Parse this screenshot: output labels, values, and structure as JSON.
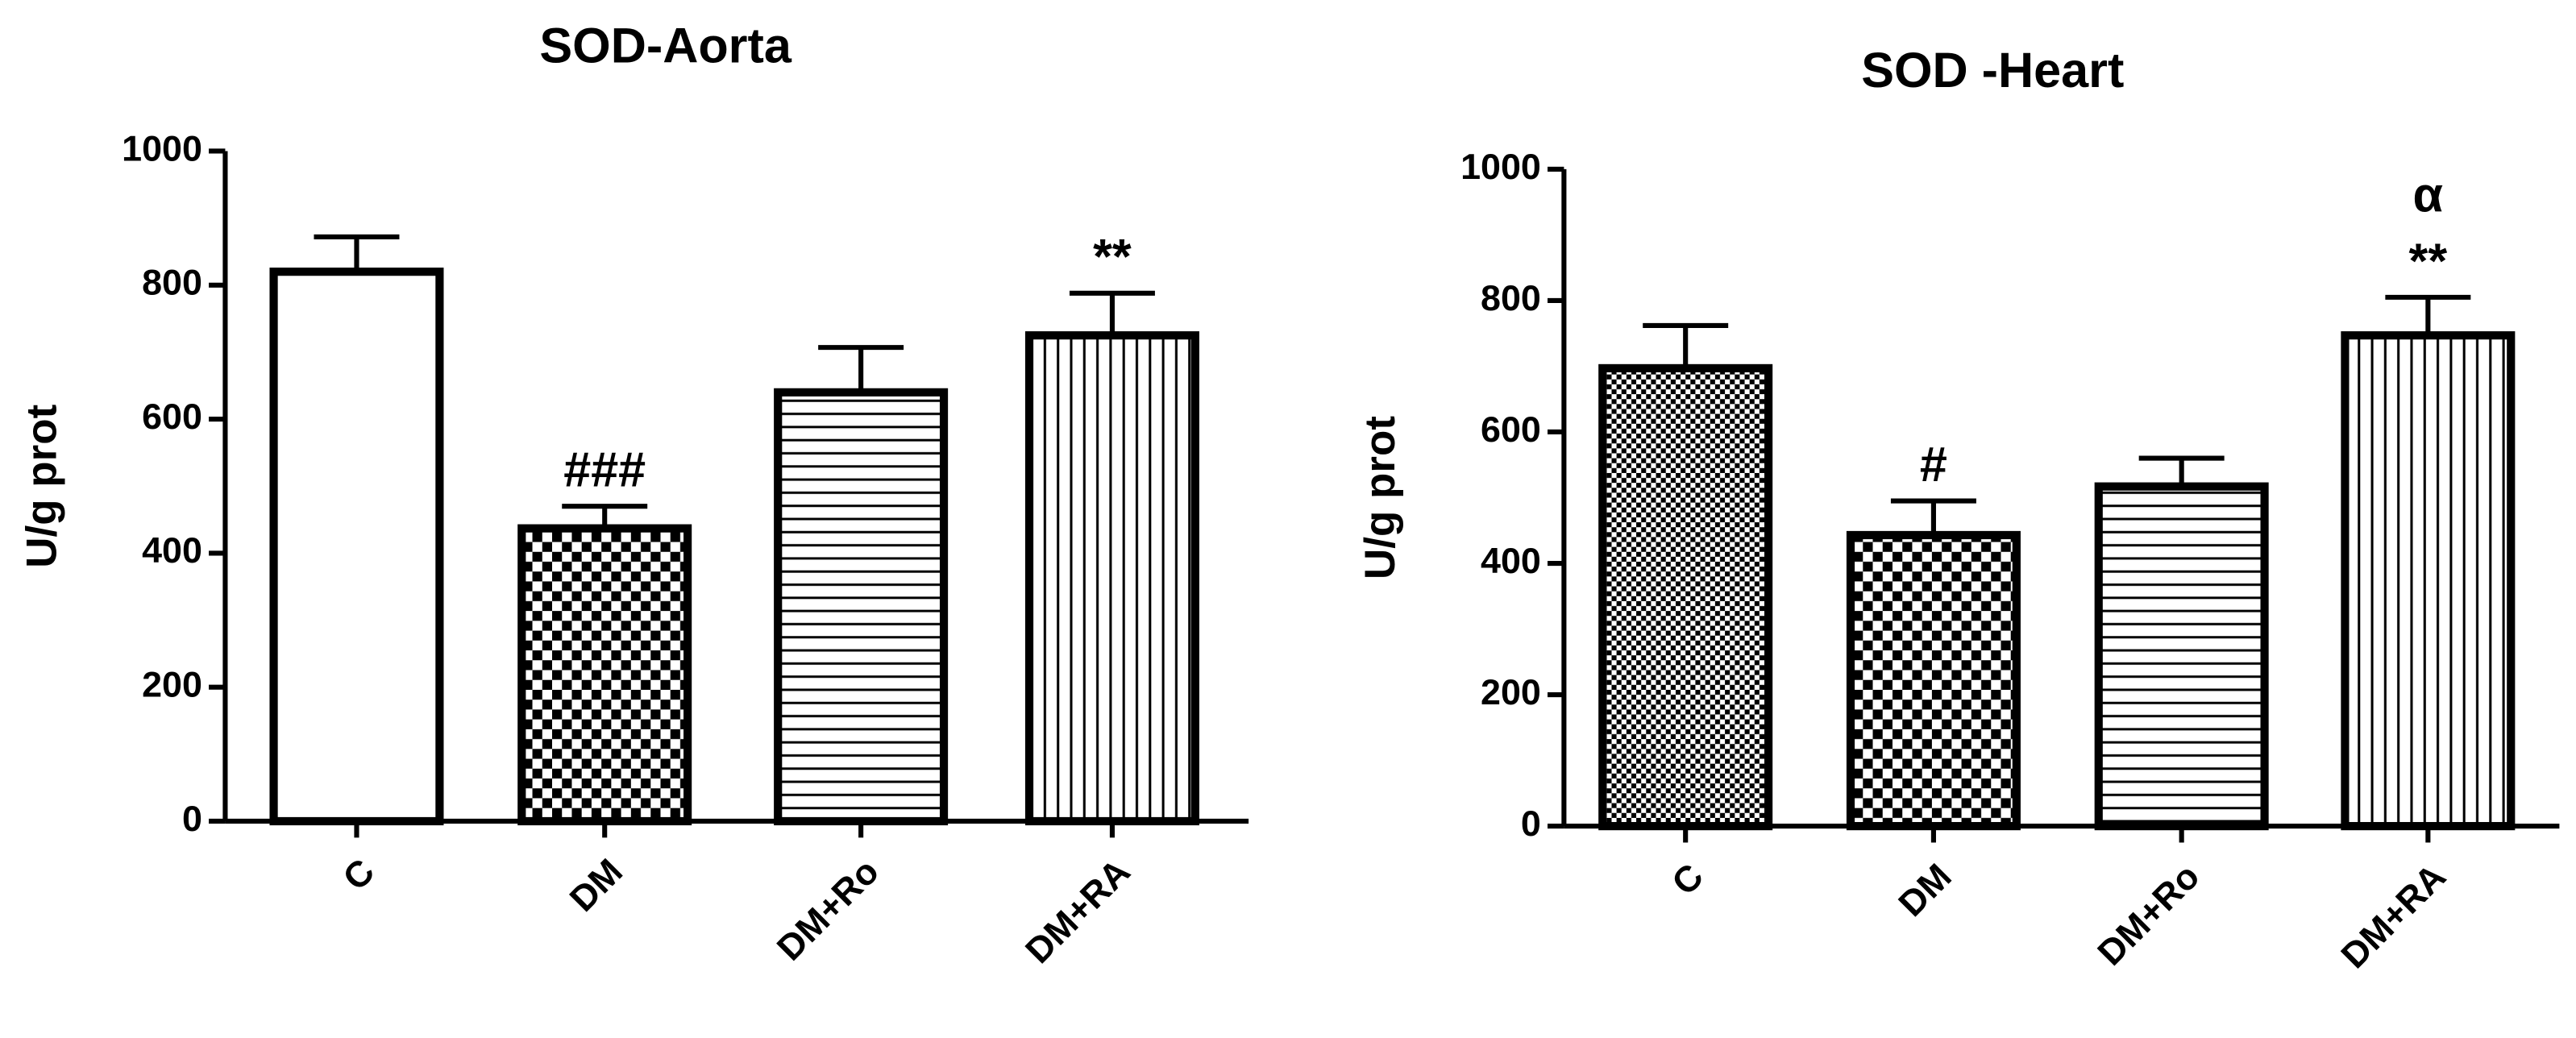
{
  "chart_data": [
    {
      "type": "bar",
      "title": "SOD-Aorta",
      "y_label": "U/g prot",
      "categories": [
        "C",
        "DM",
        "DM+Ro",
        "DM+RA"
      ],
      "values": [
        820,
        437,
        640,
        725
      ],
      "errors": [
        52,
        33,
        67,
        63
      ],
      "patterns": [
        "none",
        "checker",
        "hlines",
        "vlines"
      ],
      "color": "#000000",
      "ylim": [
        0,
        1000
      ],
      "yticks": [
        0,
        200,
        400,
        600,
        800,
        1000
      ],
      "annotations": [
        {
          "category": "DM",
          "text": "###"
        },
        {
          "category": "DM+RA",
          "text": "**"
        }
      ]
    },
    {
      "type": "bar",
      "title": "SOD -Heart",
      "y_label": "U/g prot",
      "categories": [
        "C",
        "DM",
        "DM+Ro",
        "DM+RA"
      ],
      "values": [
        697,
        443,
        517,
        747
      ],
      "errors": [
        65,
        52,
        43,
        58
      ],
      "patterns": [
        "finechecker",
        "checker",
        "hlines",
        "vlines"
      ],
      "color": "#000000",
      "ylim": [
        0,
        1000
      ],
      "yticks": [
        0,
        200,
        400,
        600,
        800,
        1000
      ],
      "annotations": [
        {
          "category": "DM",
          "text": "#"
        },
        {
          "category": "DM+RA",
          "text": "**"
        },
        {
          "category": "DM+RA",
          "text": "α"
        }
      ]
    }
  ]
}
